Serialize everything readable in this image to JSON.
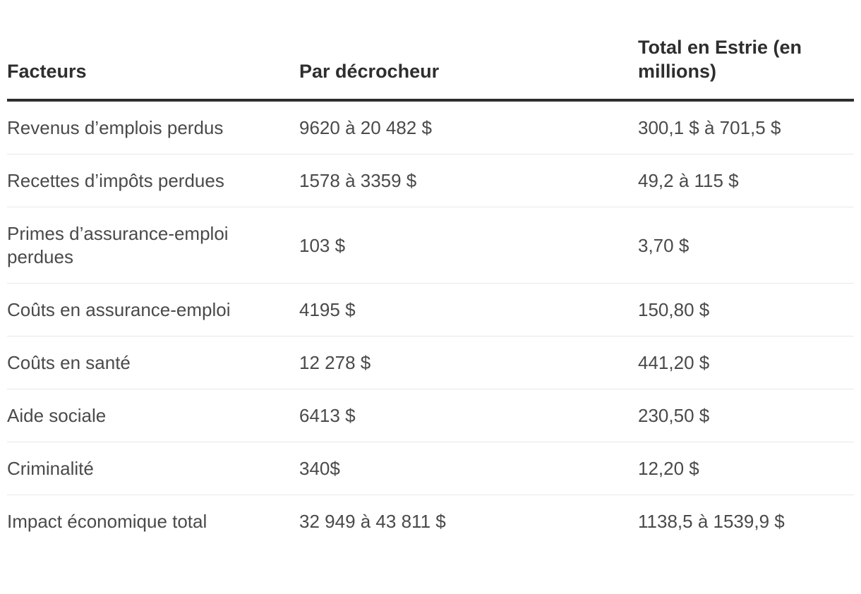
{
  "colors": {
    "background": "#ffffff",
    "header_text": "#2e2e2e",
    "body_text": "#4a4a4a",
    "header_rule": "#2e2e2e",
    "row_divider": "#e8e8e8"
  },
  "table": {
    "columns": [
      {
        "key": "facteur",
        "label": "Facteurs"
      },
      {
        "key": "par_decrocheur",
        "label": "Par décrocheur"
      },
      {
        "key": "total_estrie",
        "label": "Total en Estrie (en millions)"
      }
    ],
    "rows": [
      {
        "facteur": "Revenus d’emplois perdus",
        "par_decrocheur": "9620 à 20 482 $",
        "total_estrie": "300,1 $ à 701,5 $"
      },
      {
        "facteur": "Recettes d’impôts perdues",
        "par_decrocheur": "1578 à 3359 $",
        "total_estrie": "49,2 à 115 $"
      },
      {
        "facteur": "Primes d’assurance-emploi perdues",
        "par_decrocheur": "103 $",
        "total_estrie": "3,70 $"
      },
      {
        "facteur": "Coûts en assurance-emploi",
        "par_decrocheur": "4195 $",
        "total_estrie": "150,80 $"
      },
      {
        "facteur": "Coûts en santé",
        "par_decrocheur": "12 278 $",
        "total_estrie": "441,20 $"
      },
      {
        "facteur": "Aide sociale",
        "par_decrocheur": "6413 $",
        "total_estrie": "230,50 $"
      },
      {
        "facteur": "Criminalité",
        "par_decrocheur": "340$",
        "total_estrie": "12,20 $"
      },
      {
        "facteur": "Impact économique total",
        "par_decrocheur": "32 949 à 43 811 $",
        "total_estrie": "1138,5 à 1539,9 $"
      }
    ]
  },
  "chart_data": {
    "type": "table",
    "title": "",
    "columns": [
      "Facteurs",
      "Par décrocheur",
      "Total en Estrie (en millions)"
    ],
    "rows": [
      [
        "Revenus d’emplois perdus",
        "9620 à 20 482 $",
        "300,1 $ à 701,5 $"
      ],
      [
        "Recettes d’impôts perdues",
        "1578 à 3359 $",
        "49,2 à 115 $"
      ],
      [
        "Primes d’assurance-emploi perdues",
        "103 $",
        "3,70 $"
      ],
      [
        "Coûts en assurance-emploi",
        "4195 $",
        "150,80 $"
      ],
      [
        "Coûts en santé",
        "12 278 $",
        "441,20 $"
      ],
      [
        "Aide sociale",
        "6413 $",
        "230,50 $"
      ],
      [
        "Criminalité",
        "340$",
        "12,20 $"
      ],
      [
        "Impact économique total",
        "32 949 à 43 811 $",
        "1138,5 à 1539,9 $"
      ]
    ]
  }
}
